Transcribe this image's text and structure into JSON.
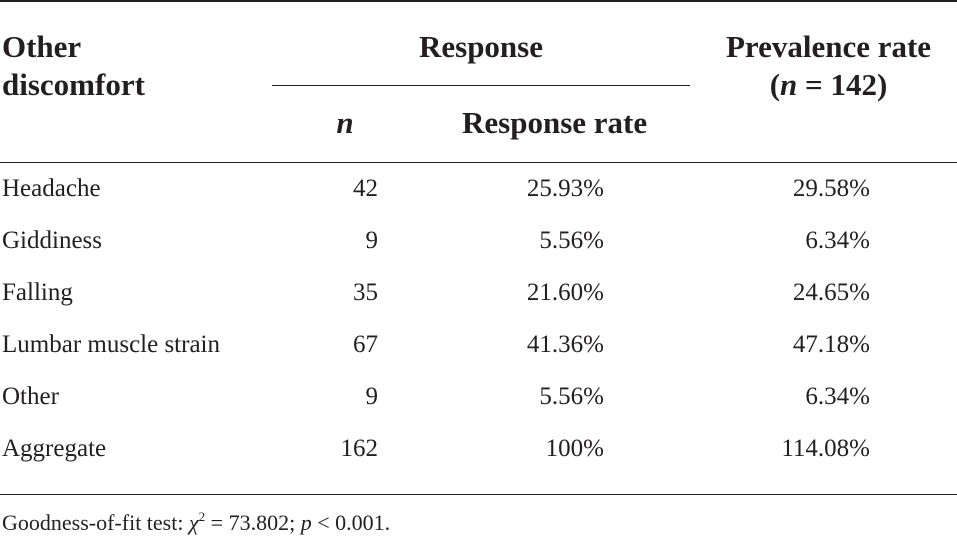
{
  "header": {
    "col1_line1": "Other",
    "col1_line2": "discomfort",
    "group": "Response",
    "sub_n": "n",
    "sub_rate": "Response rate",
    "col4_line1": "Prevalence rate",
    "col4_line2_open": "(",
    "col4_line2_n": "n",
    "col4_line2_rest": " = 142)"
  },
  "rows": [
    {
      "label": "Headache",
      "n": "42",
      "response_rate": "25.93%",
      "prevalence_rate": "29.58%"
    },
    {
      "label": "Giddiness",
      "n": "9",
      "response_rate": "5.56%",
      "prevalence_rate": "6.34%"
    },
    {
      "label": "Falling",
      "n": "35",
      "response_rate": "21.60%",
      "prevalence_rate": "24.65%"
    },
    {
      "label": "Lumbar muscle strain",
      "n": "67",
      "response_rate": "41.36%",
      "prevalence_rate": "47.18%"
    },
    {
      "label": "Other",
      "n": "9",
      "response_rate": "5.56%",
      "prevalence_rate": "6.34%"
    },
    {
      "label": "Aggregate",
      "n": "162",
      "response_rate": "100%",
      "prevalence_rate": "114.08%"
    }
  ],
  "footnote": {
    "prefix": "Goodness-of-fit test: ",
    "chi": "χ",
    "sup": "2",
    "chi_value": " = 73.802; ",
    "p": "p",
    "p_value": " < 0.001."
  }
}
